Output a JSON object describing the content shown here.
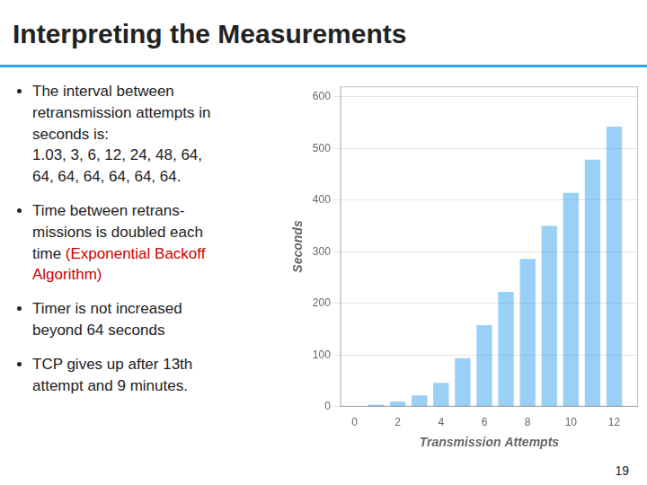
{
  "chart_data": {
    "type": "bar",
    "title": "Interpreting the Measurements",
    "x": [
      0,
      1,
      2,
      3,
      4,
      5,
      6,
      7,
      8,
      9,
      10,
      11,
      12
    ],
    "values": [
      1.03,
      4.03,
      10.03,
      22.03,
      46.03,
      94.03,
      158.03,
      222.03,
      286.03,
      350.03,
      414.03,
      478.03,
      542.03
    ],
    "xlabel": "Transmission Attempts",
    "ylabel": "Seconds",
    "xlim": [
      -0.65,
      13.1
    ],
    "xticks": [
      0,
      2,
      4,
      6,
      8,
      10,
      12
    ],
    "ylim": [
      0,
      620
    ],
    "yticks": [
      0,
      100,
      200,
      300,
      400,
      500,
      600
    ],
    "grid": true,
    "annotations": [
      [
        {
          "text": "The interval between\nretransmission attempts in\nseconds is:\n1.03, 3, 6, 12, 24, 48, 64,\n64, 64, 64, 64, 64, 64."
        }
      ],
      [
        {
          "text": "Time between retrans-\nmissions is doubled each\ntime "
        },
        {
          "text": "(Exponential Backoff\nAlgorithm)",
          "color": "#cc0000"
        }
      ],
      [
        {
          "text": "Timer is not increased\nbeyond 64 seconds"
        }
      ],
      [
        {
          "text": "TCP gives up after 13th\nattempt and 9 minutes."
        }
      ],
      [
        {
          "text": "19"
        }
      ]
    ]
  }
}
